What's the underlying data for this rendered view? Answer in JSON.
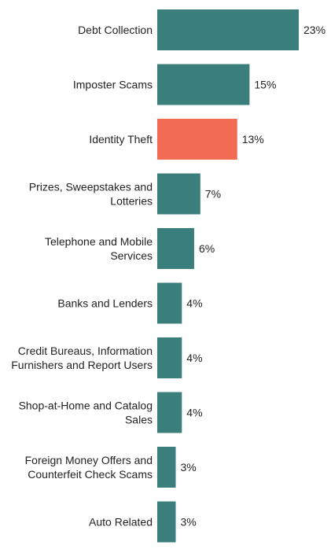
{
  "chart_data": {
    "type": "bar",
    "orientation": "horizontal",
    "categories": [
      "Debt Collection",
      "Imposter Scams",
      "Identity Theft",
      "Prizes, Sweepstakes and\nLotteries",
      "Telephone and Mobile\nServices",
      "Banks and Lenders",
      "Credit Bureaus, Information\nFurnishers and Report Users",
      "Shop-at-Home and Catalog\nSales",
      "Foreign Money Offers and\nCounterfeit Check Scams",
      "Auto Related"
    ],
    "values": [
      23,
      15,
      13,
      7,
      6,
      4,
      4,
      4,
      3,
      3
    ],
    "value_labels": [
      "23%",
      "15%",
      "13%",
      "7%",
      "6%",
      "4%",
      "4%",
      "4%",
      "3%",
      "3%"
    ],
    "unit": "%",
    "highlight_index": 2,
    "xlim": [
      0,
      23
    ],
    "grid": false,
    "legend": "none",
    "colors": {
      "bar": "#3b7f7c",
      "highlight": "#f26b55",
      "text": "#222222"
    }
  }
}
